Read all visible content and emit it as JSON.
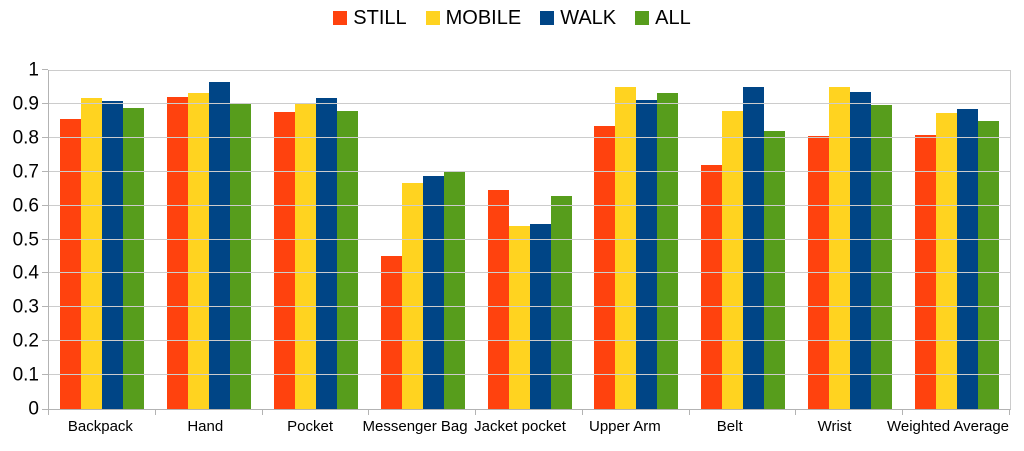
{
  "chart_data": {
    "type": "bar",
    "title": "",
    "xlabel": "",
    "ylabel": "",
    "grid": "horizontal",
    "legend_position": "top",
    "ylim": [
      0,
      1
    ],
    "ytick_step": 0.1,
    "ytick_labels": [
      "0",
      "0.1",
      "0.2",
      "0.3",
      "0.4",
      "0.5",
      "0.6",
      "0.7",
      "0.8",
      "0.9",
      "1"
    ],
    "categories": [
      "Backpack",
      "Hand",
      "Pocket",
      "Messenger Bag",
      "Jacket pocket",
      "Upper Arm",
      "Belt",
      "Wrist",
      "Weighted Average"
    ],
    "series": [
      {
        "name": "STILL",
        "color": "#FF420E",
        "values": [
          0.855,
          0.92,
          0.877,
          0.452,
          0.646,
          0.835,
          0.721,
          0.805,
          0.807
        ]
      },
      {
        "name": "MOBILE",
        "color": "#FFD320",
        "values": [
          0.916,
          0.933,
          0.902,
          0.668,
          0.539,
          0.951,
          0.878,
          0.949,
          0.872
        ]
      },
      {
        "name": "WALK",
        "color": "#004586",
        "values": [
          0.909,
          0.965,
          0.918,
          0.688,
          0.545,
          0.912,
          0.951,
          0.935,
          0.886
        ]
      },
      {
        "name": "ALL",
        "color": "#579D1C",
        "values": [
          0.889,
          0.904,
          0.879,
          0.702,
          0.629,
          0.931,
          0.819,
          0.897,
          0.851
        ]
      }
    ],
    "style": {
      "background": "#FFFFFF",
      "gridline_color": "#CCCCCC",
      "axis_color": "#B3B3B3",
      "text_color": "#000000"
    }
  }
}
